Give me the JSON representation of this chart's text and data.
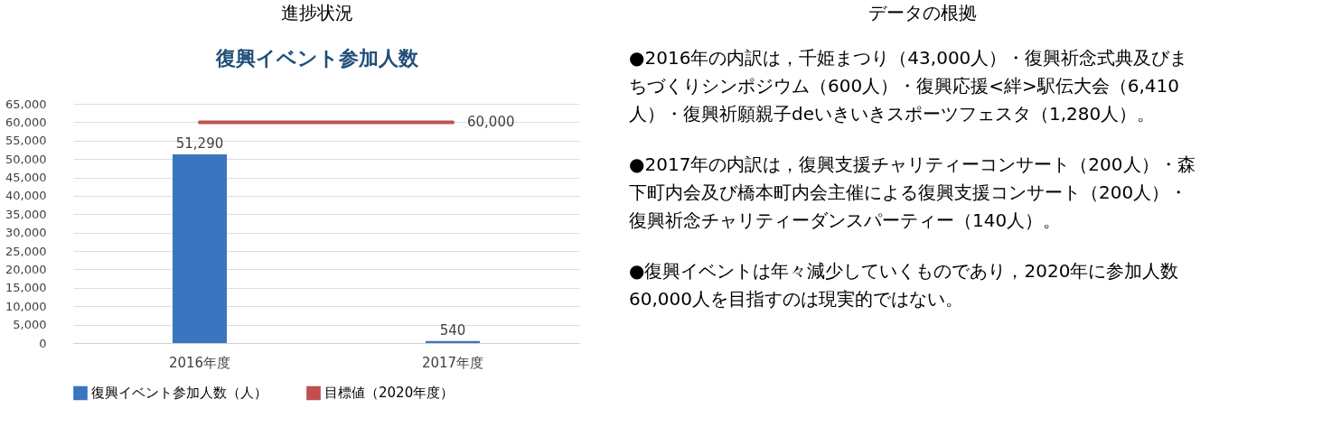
{
  "chart_data": [
    {
      "type": "bar",
      "title": "復興イベント参加人数",
      "categories": [
        "2016年度",
        "2017年度"
      ],
      "series": [
        {
          "name": "復興イベント参加人数（人）",
          "type": "bar",
          "color": "#3a75c0",
          "values": [
            51290,
            540
          ],
          "value_labels": [
            "51,290",
            "540"
          ]
        },
        {
          "name": "目標値（2020年度）",
          "type": "line",
          "color": "#c0504d",
          "values": [
            60000,
            60000
          ],
          "value_labels": [
            null,
            "60,000"
          ]
        }
      ],
      "ylim": [
        0,
        65000
      ],
      "yticks": [
        {
          "value": 0,
          "label": "0"
        },
        {
          "value": 5000,
          "label": "5,000"
        },
        {
          "value": 10000,
          "label": "10,000"
        },
        {
          "value": 15000,
          "label": "15,000"
        },
        {
          "value": 20000,
          "label": "20,000"
        },
        {
          "value": 25000,
          "label": "25,000"
        },
        {
          "value": 30000,
          "label": "30,000"
        },
        {
          "value": 35000,
          "label": "35,000"
        },
        {
          "value": 40000,
          "label": "40,000"
        },
        {
          "value": 45000,
          "label": "45,000"
        },
        {
          "value": 50000,
          "label": "50,000"
        },
        {
          "value": 55000,
          "label": "55,000"
        },
        {
          "value": 60000,
          "label": "60,000"
        },
        {
          "value": 65000,
          "label": "65,000"
        }
      ],
      "grid": "y",
      "legend": "bottom",
      "annotations": [
        "進捗状況"
      ]
    },
    {
      "type": "other",
      "title": "データの根拠",
      "annotations": [
        "●2016年の内訳は，千姫まつり（43,000人）・復興祈念式典及びまちづくりシンポジウム（600人）・復興応援<絆>駅伝大会（6,410人）・復興祈願親子deいきいきスポーツフェスタ（1,280人）。",
        "●2017年の内訳は，復興支援チャリティーコンサート（200人）・森下町内会及び橋本町内会主催による復興支援コンサート（200人）・復興祈念チャリティーダンスパーティー（140人）。",
        "●復興イベントは年々減少していくものであり，2020年に参加人数60,000人を目指すのは現実的ではない。"
      ]
    }
  ]
}
